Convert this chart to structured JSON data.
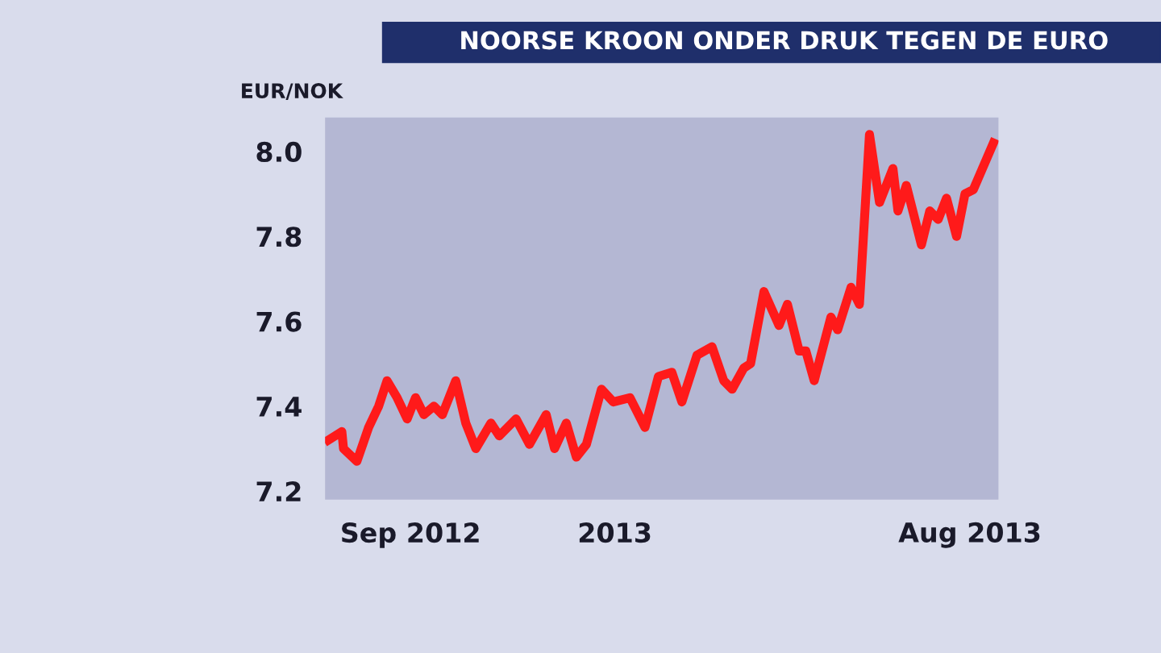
{
  "chart_data": {
    "type": "line",
    "title": "NOORSE KROON ONDER DRUK TEGEN DE EURO",
    "ylabel": "EUR/NOK",
    "x": [
      "2012-07-14",
      "2012-07-22",
      "2012-07-23",
      "2012-07-31",
      "2012-08-07",
      "2012-08-13",
      "2012-08-18",
      "2012-08-24",
      "2012-08-30",
      "2012-09-04",
      "2012-09-09",
      "2012-09-15",
      "2012-09-20",
      "2012-09-28",
      "2012-10-04",
      "2012-10-10",
      "2012-10-19",
      "2012-10-24",
      "2012-11-03",
      "2012-11-11",
      "2012-11-21",
      "2012-11-26",
      "2012-12-03",
      "2012-12-09",
      "2012-12-15",
      "2012-12-24",
      "2012-12-31",
      "2013-01-10",
      "2013-01-19",
      "2013-01-27",
      "2013-02-04",
      "2013-02-10",
      "2013-02-19",
      "2013-02-28",
      "2013-03-07",
      "2013-03-12",
      "2013-03-19",
      "2013-03-23",
      "2013-03-31",
      "2013-04-09",
      "2013-04-14",
      "2013-04-21",
      "2013-04-25",
      "2013-04-30",
      "2013-05-10",
      "2013-05-14",
      "2013-05-22",
      "2013-05-27",
      "2013-06-02",
      "2013-06-08",
      "2013-06-16",
      "2013-06-19",
      "2013-06-24",
      "2013-07-03",
      "2013-07-08",
      "2013-07-13",
      "2013-07-18",
      "2013-07-24",
      "2013-07-29",
      "2013-08-03",
      "2013-08-15"
    ],
    "series": [
      {
        "color": "#ff1a1a",
        "values": [
          7.32,
          7.34,
          7.3,
          7.27,
          7.35,
          7.4,
          7.46,
          7.42,
          7.37,
          7.42,
          7.38,
          7.4,
          7.38,
          7.46,
          7.36,
          7.3,
          7.36,
          7.33,
          7.37,
          7.31,
          7.38,
          7.3,
          7.36,
          7.28,
          7.31,
          7.44,
          7.41,
          7.42,
          7.35,
          7.47,
          7.48,
          7.41,
          7.52,
          7.54,
          7.46,
          7.44,
          7.49,
          7.5,
          7.67,
          7.59,
          7.64,
          7.53,
          7.53,
          7.46,
          7.61,
          7.58,
          7.68,
          7.64,
          8.04,
          7.88,
          7.96,
          7.86,
          7.92,
          7.78,
          7.86,
          7.84,
          7.89,
          7.8,
          7.9,
          7.91,
          8.02
        ]
      }
    ],
    "xlim": [
      "2012-07-12",
      "2013-08-18"
    ],
    "xticks": [
      {
        "value": "2012-09-01",
        "label": "Sep 2012"
      },
      {
        "value": "2013-01-01",
        "label": "2013"
      },
      {
        "value": "2013-08-01",
        "label": "Aug 2013"
      }
    ],
    "ylim": [
      7.18,
      8.08
    ],
    "yticks": [
      7.2,
      7.4,
      7.6,
      7.8,
      {
        "value": 8,
        "label": "8.0"
      }
    ],
    "grid": false,
    "marker": "none",
    "line_style": "solid"
  }
}
